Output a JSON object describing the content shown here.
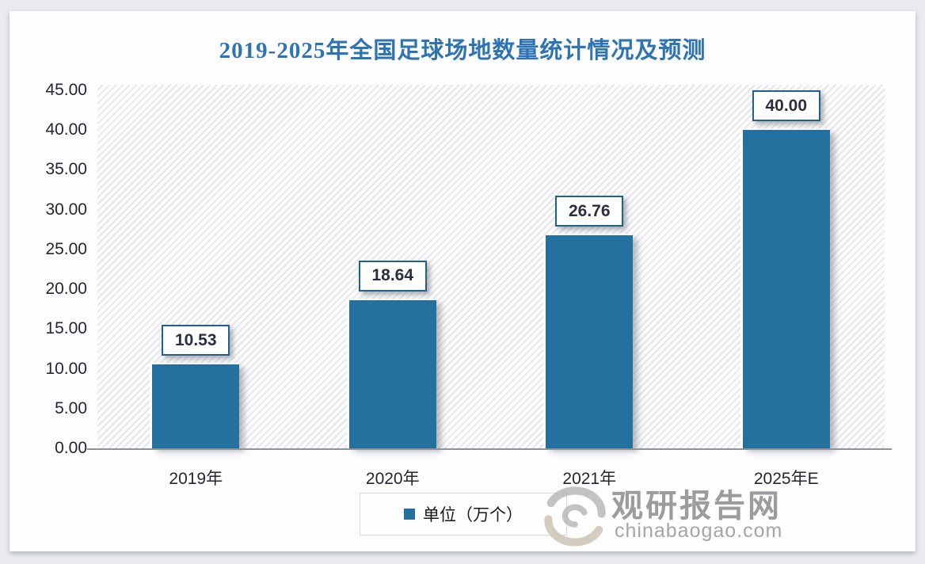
{
  "chart_data": {
    "type": "bar",
    "title": "2019-2025年全国足球场地数量统计情况及预测",
    "categories": [
      "2019年",
      "2020年",
      "2021年",
      "2025年E"
    ],
    "values": [
      10.53,
      18.64,
      26.76,
      40.0
    ],
    "value_labels": [
      "10.53",
      "18.64",
      "26.76",
      "40.00"
    ],
    "series_name": "单位（万个）",
    "xlabel": "",
    "ylabel": "",
    "ylim": [
      0,
      45
    ],
    "ytick_step": 5,
    "ytick_labels": [
      "0.00",
      "5.00",
      "10.00",
      "15.00",
      "20.00",
      "25.00",
      "30.00",
      "35.00",
      "40.00",
      "45.00"
    ],
    "grid": false,
    "legend_position": "bottom",
    "plot_background": "diagonal-hatch",
    "colors": {
      "bar": "#24719F",
      "title": "#2E74B5",
      "value_label_border": "#20618C",
      "value_label_text": "#2A2E3F",
      "axis_line": "#8F9297",
      "tick_text": "#26262E"
    }
  },
  "legend": {
    "label": "单位（万个）"
  },
  "watermark": {
    "site_name": "观研报告网",
    "site_url": "chinabaogao.com",
    "logo": "swirl-logo",
    "colors": {
      "logo_gray": "#b9b9bb",
      "logo_tan": "#cdc4b4"
    }
  }
}
